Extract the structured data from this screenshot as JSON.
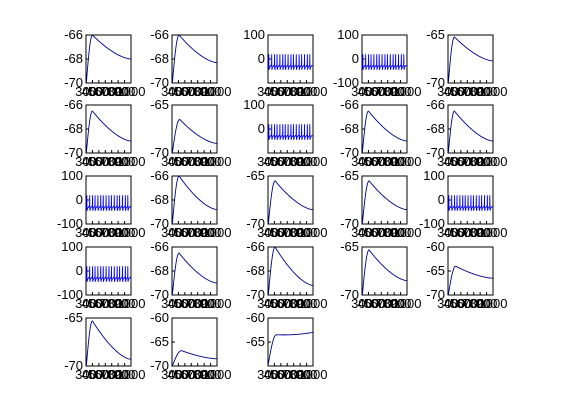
{
  "figure": {
    "background": "#ffffff",
    "axis_color": "#000000",
    "line_color": "#00008b",
    "spike_color": "#0000ff"
  },
  "chart_data": [
    {
      "type": "line",
      "shape": "decay",
      "ylim": [
        -70,
        -66
      ],
      "yticks": [
        "-66",
        "-68",
        "-70"
      ],
      "xlim": [
        300,
        1000
      ],
      "xticks": [
        "300",
        "400",
        "500",
        "600",
        "700",
        "800",
        "900",
        "1000"
      ],
      "peak": -66.0,
      "peak_x": 400,
      "end": -68.0
    },
    {
      "type": "line",
      "shape": "decay",
      "ylim": [
        -70,
        -66
      ],
      "yticks": [
        "-66",
        "-68",
        "-70"
      ],
      "xlim": [
        300,
        1000
      ],
      "xticks": [
        "300",
        "400",
        "500",
        "600",
        "700",
        "800",
        "900",
        "1000"
      ],
      "peak": -66.0,
      "peak_x": 410,
      "end": -68.3
    },
    {
      "type": "line",
      "shape": "spikes",
      "ylim": [
        -100,
        100
      ],
      "yticks": [
        "100",
        "0"
      ],
      "xlim": [
        300,
        1000
      ],
      "xticks": [
        "300",
        "400",
        "500",
        "600",
        "700",
        "800",
        "900",
        "1000"
      ],
      "base": -30,
      "top": 20,
      "bottom": -45,
      "spike_count": 16
    },
    {
      "type": "line",
      "shape": "spikes",
      "ylim": [
        -100,
        100
      ],
      "yticks": [
        "100",
        "0",
        "-100"
      ],
      "xlim": [
        300,
        1000
      ],
      "xticks": [
        "300",
        "400",
        "500",
        "600",
        "700",
        "800",
        "900",
        "1000"
      ],
      "base": -30,
      "top": 20,
      "bottom": -45,
      "spike_count": 16
    },
    {
      "type": "line",
      "shape": "decay",
      "ylim": [
        -70,
        -65
      ],
      "yticks": [
        "-65",
        "-70"
      ],
      "xlim": [
        300,
        1000
      ],
      "xticks": [
        "300",
        "400",
        "500",
        "600",
        "700",
        "800",
        "900",
        "1000"
      ],
      "peak": -65.2,
      "peak_x": 400,
      "end": -67.7
    },
    {
      "type": "line",
      "shape": "decay",
      "ylim": [
        -70,
        -66
      ],
      "yticks": [
        "-66",
        "-68",
        "-70"
      ],
      "xlim": [
        300,
        1000
      ],
      "xticks": [
        "300",
        "400",
        "500",
        "600",
        "700",
        "800",
        "900",
        "1000"
      ],
      "peak": -66.5,
      "peak_x": 400,
      "end": -69.0
    },
    {
      "type": "line",
      "shape": "decay",
      "ylim": [
        -70,
        -65
      ],
      "yticks": [
        "-65",
        "-70"
      ],
      "xlim": [
        300,
        1000
      ],
      "xticks": [
        "300",
        "400",
        "500",
        "600",
        "700",
        "800",
        "900",
        "1000"
      ],
      "peak": -66.5,
      "peak_x": 420,
      "end": -69.0
    },
    {
      "type": "line",
      "shape": "spikes",
      "ylim": [
        -100,
        100
      ],
      "yticks": [
        "100",
        "0"
      ],
      "xlim": [
        300,
        1000
      ],
      "xticks": [
        "300",
        "400",
        "500",
        "600",
        "700",
        "800",
        "900",
        "1000"
      ],
      "base": -30,
      "top": 20,
      "bottom": -45,
      "spike_count": 16
    },
    {
      "type": "line",
      "shape": "decay",
      "ylim": [
        -70,
        -66
      ],
      "yticks": [
        "-66",
        "-68",
        "-70"
      ],
      "xlim": [
        300,
        1000
      ],
      "xticks": [
        "300",
        "400",
        "500",
        "600",
        "700",
        "800",
        "900",
        "1000"
      ],
      "peak": -66.5,
      "peak_x": 400,
      "end": -69.0
    },
    {
      "type": "line",
      "shape": "decay",
      "ylim": [
        -70,
        -66
      ],
      "yticks": [
        "-66",
        "-68",
        "-70"
      ],
      "xlim": [
        300,
        1000
      ],
      "xticks": [
        "300",
        "400",
        "500",
        "600",
        "700",
        "800",
        "900",
        "1000"
      ],
      "peak": -66.5,
      "peak_x": 400,
      "end": -69.0
    },
    {
      "type": "line",
      "shape": "spikes",
      "ylim": [
        -100,
        100
      ],
      "yticks": [
        "100",
        "0",
        "-100"
      ],
      "xlim": [
        300,
        1000
      ],
      "xticks": [
        "300",
        "400",
        "500",
        "600",
        "700",
        "800",
        "900",
        "1000"
      ],
      "base": -30,
      "top": 20,
      "bottom": -45,
      "spike_count": 16
    },
    {
      "type": "line",
      "shape": "decay",
      "ylim": [
        -70,
        -66
      ],
      "yticks": [
        "-66",
        "-68",
        "-70"
      ],
      "xlim": [
        300,
        1000
      ],
      "xticks": [
        "300",
        "400",
        "500",
        "600",
        "700",
        "800",
        "900",
        "1000"
      ],
      "peak": -66.0,
      "peak_x": 410,
      "end": -68.8
    },
    {
      "type": "line",
      "shape": "decay",
      "ylim": [
        -70,
        -65
      ],
      "yticks": [
        "-65",
        "-70"
      ],
      "xlim": [
        300,
        1000
      ],
      "xticks": [
        "300",
        "400",
        "500",
        "600",
        "700",
        "800",
        "900",
        "1000"
      ],
      "peak": -65.5,
      "peak_x": 410,
      "end": -68.5
    },
    {
      "type": "line",
      "shape": "decay",
      "ylim": [
        -70,
        -65
      ],
      "yticks": [
        "-65",
        "-70"
      ],
      "xlim": [
        300,
        1000
      ],
      "xticks": [
        "300",
        "400",
        "500",
        "600",
        "700",
        "800",
        "900",
        "1000"
      ],
      "peak": -65.5,
      "peak_x": 410,
      "end": -68.5
    },
    {
      "type": "line",
      "shape": "spikes",
      "ylim": [
        -100,
        100
      ],
      "yticks": [
        "100",
        "0",
        "-100"
      ],
      "xlim": [
        300,
        1000
      ],
      "xticks": [
        "300",
        "400",
        "500",
        "600",
        "700",
        "800",
        "900",
        "1000"
      ],
      "base": -30,
      "top": 20,
      "bottom": -45,
      "spike_count": 16
    },
    {
      "type": "line",
      "shape": "spikes",
      "ylim": [
        -100,
        100
      ],
      "yticks": [
        "100",
        "0",
        "-100"
      ],
      "xlim": [
        300,
        1000
      ],
      "xticks": [
        "300",
        "400",
        "500",
        "600",
        "700",
        "800",
        "900",
        "1000"
      ],
      "base": -30,
      "top": 20,
      "bottom": -45,
      "spike_count": 16
    },
    {
      "type": "line",
      "shape": "decay",
      "ylim": [
        -70,
        -66
      ],
      "yticks": [
        "-66",
        "-68",
        "-70"
      ],
      "xlim": [
        300,
        1000
      ],
      "xticks": [
        "300",
        "400",
        "500",
        "600",
        "700",
        "800",
        "900",
        "1000"
      ],
      "peak": -66.5,
      "peak_x": 410,
      "end": -69.0
    },
    {
      "type": "line",
      "shape": "decay",
      "ylim": [
        -70,
        -66
      ],
      "yticks": [
        "-66",
        "-68",
        "-70"
      ],
      "xlim": [
        300,
        1000
      ],
      "xticks": [
        "300",
        "400",
        "500",
        "600",
        "700",
        "800",
        "900",
        "1000"
      ],
      "peak": -66.0,
      "peak_x": 410,
      "end": -69.2
    },
    {
      "type": "line",
      "shape": "decay",
      "ylim": [
        -70,
        -65
      ],
      "yticks": [
        "-65",
        "-70"
      ],
      "xlim": [
        300,
        1000
      ],
      "xticks": [
        "300",
        "400",
        "500",
        "600",
        "700",
        "800",
        "900",
        "1000"
      ],
      "peak": -65.3,
      "peak_x": 410,
      "end": -68.5
    },
    {
      "type": "line",
      "shape": "decay",
      "ylim": [
        -70,
        -60
      ],
      "yticks": [
        "-60",
        "-65",
        "-70"
      ],
      "xlim": [
        300,
        1000
      ],
      "xticks": [
        "300",
        "400",
        "500",
        "600",
        "700",
        "800",
        "900",
        "1000"
      ],
      "peak": -64.0,
      "peak_x": 420,
      "end": -66.5
    },
    {
      "type": "line",
      "shape": "decay",
      "ylim": [
        -70,
        -65
      ],
      "yticks": [
        "-65",
        "-70"
      ],
      "xlim": [
        300,
        1000
      ],
      "xticks": [
        "300",
        "400",
        "500",
        "600",
        "700",
        "800",
        "900",
        "1000"
      ],
      "peak": -65.3,
      "peak_x": 400,
      "end": -69.3
    },
    {
      "type": "line",
      "shape": "decay",
      "ylim": [
        -70,
        -60
      ],
      "yticks": [
        "-60",
        "-65",
        "-70"
      ],
      "xlim": [
        300,
        1000
      ],
      "xticks": [
        "300",
        "400",
        "500",
        "600",
        "700",
        "800",
        "900",
        "1000"
      ],
      "peak": -66.8,
      "peak_x": 450,
      "end": -68.5
    },
    {
      "type": "line",
      "shape": "plateau",
      "ylim": [
        -70,
        -60
      ],
      "yticks": [
        "-60",
        "-65"
      ],
      "xlim": [
        300,
        1000
      ],
      "xticks": [
        "300",
        "400",
        "500",
        "600",
        "700",
        "800",
        "900",
        "1000"
      ],
      "peak": -63.5,
      "peak_x": 430,
      "end": -63.0
    }
  ]
}
